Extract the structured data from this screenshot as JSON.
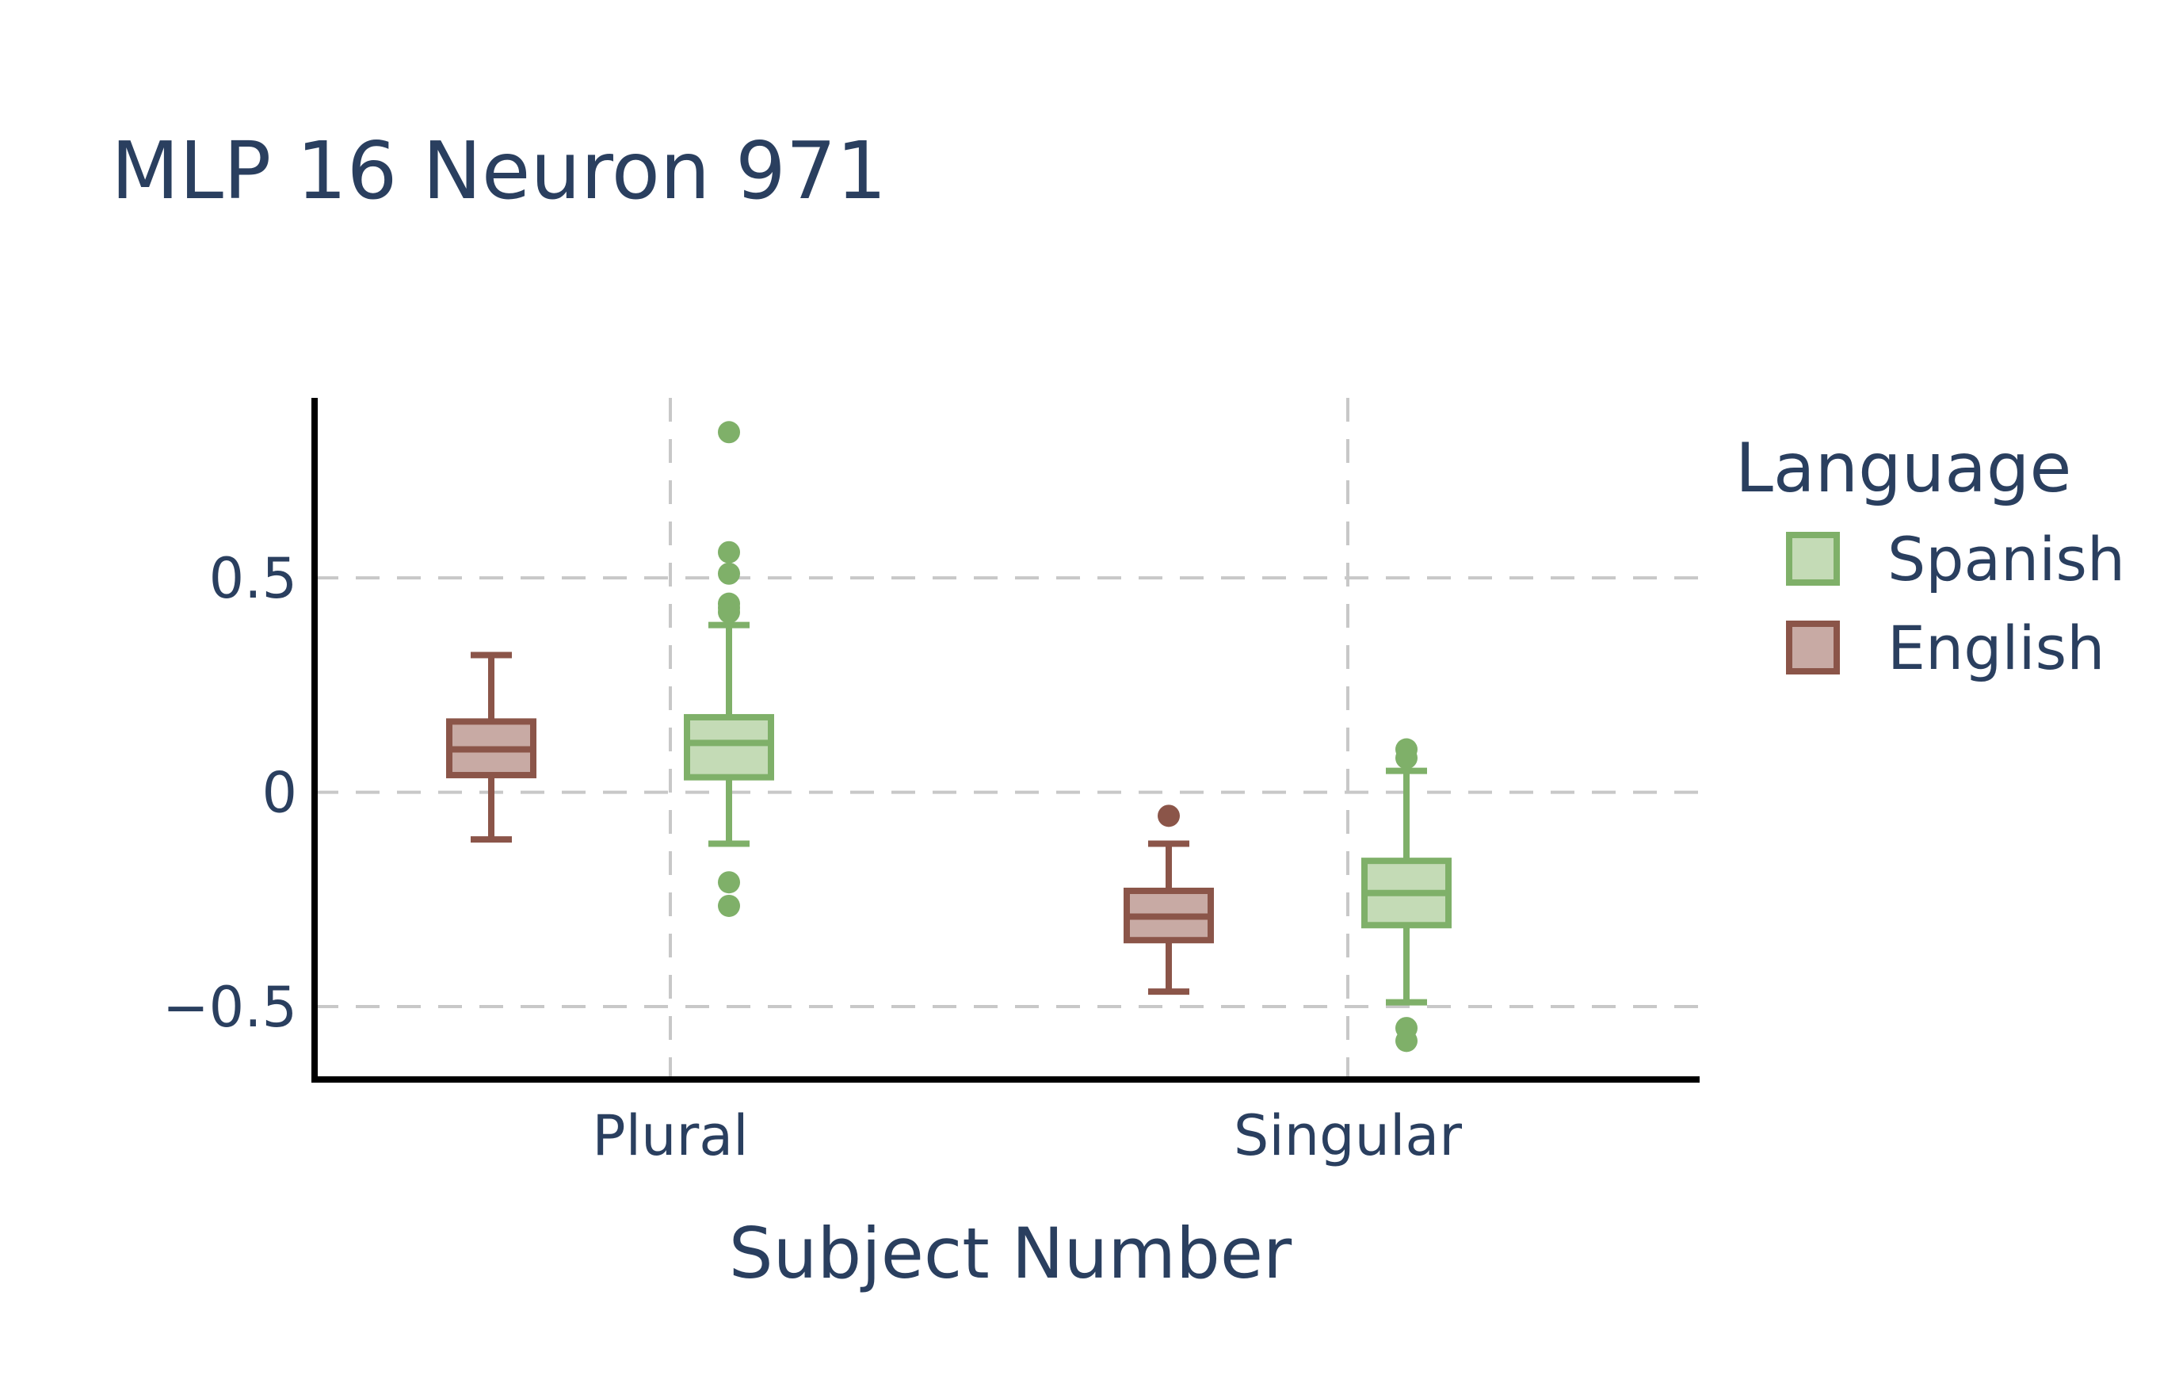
{
  "chart_data": {
    "type": "box",
    "title": "MLP 16 Neuron 971",
    "xlabel": "Subject Number",
    "ylabel": "",
    "categories": [
      "Plural",
      "Singular"
    ],
    "ylim": [
      -0.67,
      0.92
    ],
    "yticks": [
      {
        "value": 0.5,
        "label": "0.5"
      },
      {
        "value": 0,
        "label": "0"
      },
      {
        "value": -0.5,
        "label": "−0.5"
      }
    ],
    "grid": true,
    "legend": {
      "title": "Language",
      "position": "right"
    },
    "series": [
      {
        "name": "Spanish",
        "color": "#7fb069",
        "fill": "#c4dbb6",
        "boxes": [
          {
            "category": "Plural",
            "q1": 0.035,
            "median": 0.115,
            "q3": 0.175,
            "whisker_low": -0.12,
            "whisker_high": 0.39,
            "outliers": [
              0.84,
              0.56,
              0.51,
              0.44,
              0.43,
              0.42,
              -0.21,
              -0.265
            ]
          },
          {
            "category": "Singular",
            "q1": -0.31,
            "median": -0.235,
            "q3": -0.16,
            "whisker_low": -0.49,
            "whisker_high": 0.05,
            "outliers": [
              0.1,
              0.08,
              -0.55,
              -0.58
            ]
          }
        ]
      },
      {
        "name": "English",
        "color": "#8b5549",
        "fill": "#c8aaa4",
        "boxes": [
          {
            "category": "Plural",
            "q1": 0.04,
            "median": 0.1,
            "q3": 0.165,
            "whisker_low": -0.11,
            "whisker_high": 0.32,
            "outliers": []
          },
          {
            "category": "Singular",
            "q1": -0.345,
            "median": -0.29,
            "q3": -0.23,
            "whisker_low": -0.465,
            "whisker_high": -0.12,
            "outliers": [
              -0.055
            ]
          }
        ]
      }
    ]
  }
}
